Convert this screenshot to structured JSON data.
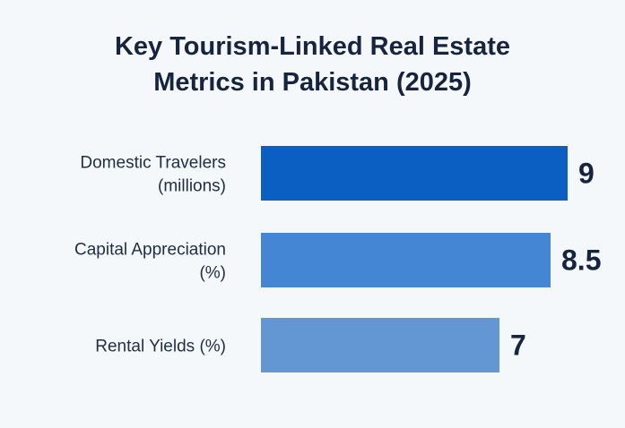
{
  "chart_data": {
    "type": "bar",
    "orientation": "horizontal",
    "title_lines": [
      "Key Tourism-Linked Real Estate",
      "Metrics in Pakistan (2025)"
    ],
    "categories": [
      [
        "Domestic Travelers",
        "(millions)"
      ],
      [
        "Capital Appreciation",
        "(%)"
      ],
      [
        "Rental Yields (%)"
      ]
    ],
    "values": [
      9,
      8.5,
      7
    ],
    "value_labels": [
      "9",
      "8.5",
      "7"
    ],
    "colors": [
      "#0b5fc2",
      "#4586d4",
      "#6297d4"
    ],
    "xlim": [
      0,
      9
    ],
    "grid": false,
    "legend": "none"
  }
}
